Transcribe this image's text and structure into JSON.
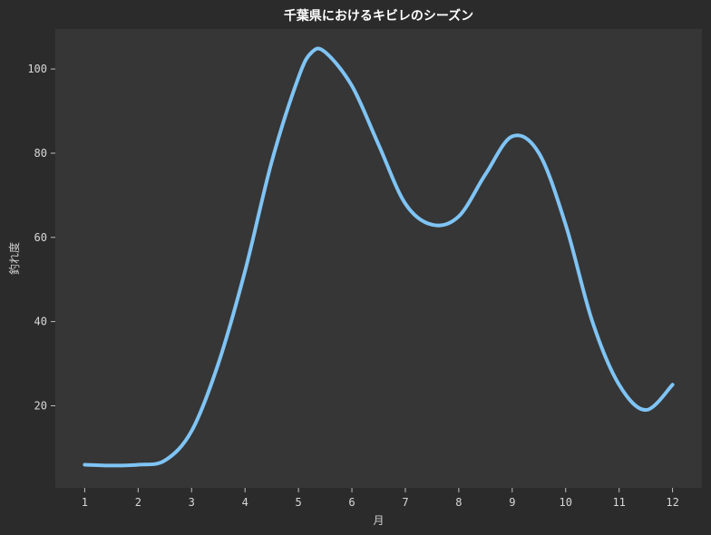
{
  "chart_data": {
    "type": "line",
    "title": "千葉県におけるキビレのシーズン",
    "xlabel": "月",
    "ylabel": "釣れ度",
    "x": [
      1,
      1.5,
      2,
      2.5,
      3,
      3.5,
      4,
      4.5,
      5,
      5.25,
      5.5,
      6,
      6.5,
      7,
      7.5,
      8,
      8.5,
      9,
      9.5,
      10,
      10.5,
      11,
      11.5,
      12
    ],
    "series": [
      {
        "values": [
          6,
          5.8,
          6,
          7,
          14,
          30,
          52,
          78,
          98,
          104,
          104,
          96,
          82,
          68,
          63,
          65,
          75,
          84,
          80,
          63,
          40,
          25,
          19,
          25
        ],
        "color": "#7fc4f5"
      }
    ],
    "xticks": [
      "1",
      "2",
      "3",
      "4",
      "5",
      "6",
      "7",
      "8",
      "9",
      "10",
      "11",
      "12"
    ],
    "yticks": [
      "20",
      "40",
      "60",
      "80",
      "100"
    ],
    "xlim": [
      0.45,
      12.55
    ],
    "ylim": [
      0.5,
      109.5
    ],
    "grid": false,
    "background": "#2b2b2b",
    "plot_background": "#363636"
  }
}
